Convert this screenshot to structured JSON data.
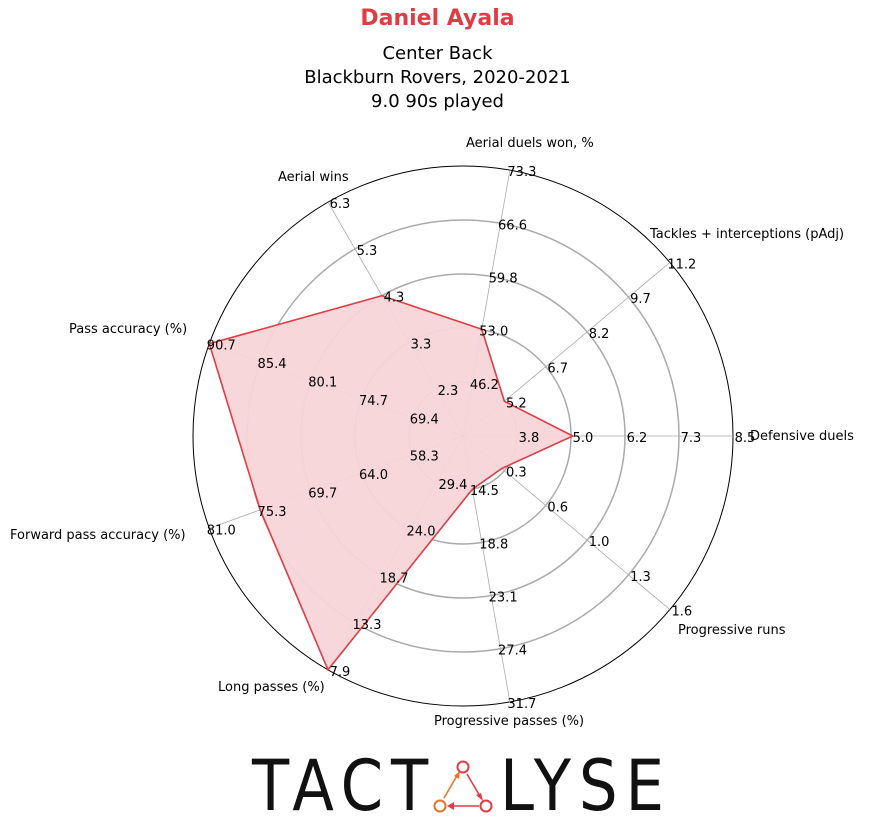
{
  "header": {
    "player_name": "Daniel Ayala",
    "position": "Center Back",
    "team_season": "Blackburn Rovers, 2020-2021",
    "minutes": "9.0 90s played"
  },
  "colors": {
    "accent": "#e03c44",
    "fill": "#f7d5d7",
    "grid": "#aaaaaa",
    "logo_red": "#e03c44",
    "logo_orange": "#e8732a"
  },
  "logo": {
    "text_left": "TACT",
    "text_right": "LYSE",
    "icon": "triangle-nodes-icon"
  },
  "chart_data": {
    "type": "radar",
    "title": "Daniel Ayala",
    "grid": true,
    "rings": 5,
    "axes": [
      {
        "label": "Defensive duels",
        "ticks": [
          "3.8",
          "5.0",
          "6.2",
          "7.3",
          "8.5"
        ],
        "value": 5.0
      },
      {
        "label": "Tackles + interceptions (pAdj)",
        "ticks": [
          "5.2",
          "6.7",
          "8.2",
          "9.7",
          "11.2"
        ],
        "value": 5.2
      },
      {
        "label": "Aerial duels won, %",
        "ticks": [
          "46.2",
          "53.0",
          "59.8",
          "66.6",
          "73.3"
        ],
        "value": 53.0
      },
      {
        "label": "Aerial wins",
        "ticks": [
          "2.3",
          "3.3",
          "4.3",
          "5.3",
          "6.3"
        ],
        "value": 4.3
      },
      {
        "label": "Pass accuracy (%)",
        "ticks": [
          "69.4",
          "74.7",
          "80.1",
          "85.4",
          "90.7"
        ],
        "value": 90.7
      },
      {
        "label": "Forward pass accuracy (%)",
        "ticks": [
          "58.3",
          "64.0",
          "69.7",
          "75.3",
          "81.0"
        ],
        "value": 75.3
      },
      {
        "label": "Long passes (%)",
        "ticks": [
          "24.0",
          "18.7",
          "13.3",
          "7.9"
        ],
        "value": 7.9
      },
      {
        "label": "Progressive passes (%)",
        "ticks": [
          "14.5",
          "18.8",
          "23.1",
          "27.4",
          "31.7"
        ],
        "value": 14.5
      },
      {
        "label": "Progressive runs",
        "ticks": [
          "0.3",
          "0.6",
          "1.0",
          "1.3",
          "1.6"
        ],
        "value": 0.3
      }
    ],
    "center_labels": [
      "29.4"
    ]
  }
}
